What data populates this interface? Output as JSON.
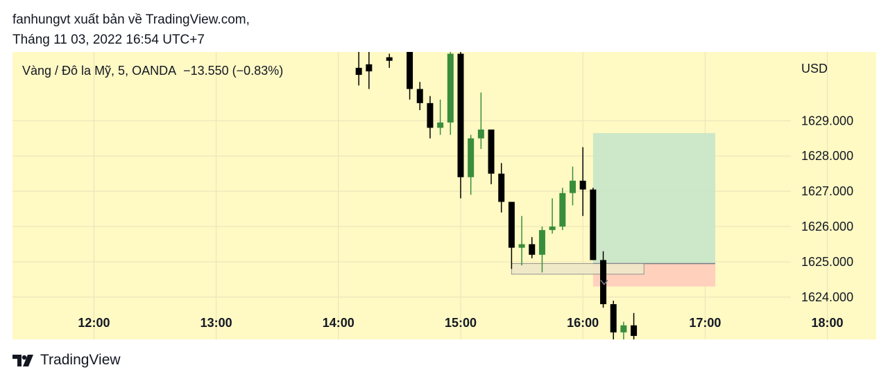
{
  "header": {
    "line1": "fanhungvt xuất bản về TradingView.com,",
    "line2": "Tháng 11 03, 2022 16:54 UTC+7"
  },
  "legend": {
    "symbol": "Vàng / Đô la Mỹ, 5, OANDA",
    "change": "−13.550 (−0.83%)"
  },
  "axis": {
    "currency": "USD"
  },
  "footer": {
    "brand": "TradingView"
  },
  "colors": {
    "background": "#fff9c4",
    "up": "#388e3c",
    "down": "#000000",
    "grid": "#e8e2b8",
    "profit_zone": "#c8e6c9",
    "loss_zone": "#ffccbc"
  },
  "chart_data": {
    "type": "candlestick",
    "symbol": "XAUUSD",
    "interval_minutes": 5,
    "x_ticks": [
      "12:00",
      "13:00",
      "14:00",
      "15:00",
      "16:00",
      "17:00",
      "18:00"
    ],
    "y_ticks": [
      "1624.000",
      "1625.000",
      "1626.000",
      "1627.000",
      "1628.000",
      "1629.000"
    ],
    "xlim": [
      "11:20",
      "18:24"
    ],
    "ylim": [
      1622.8,
      1630.95
    ],
    "candles": [
      {
        "t": "14:10",
        "o": 1630.5,
        "h": 1631.0,
        "l": 1630.0,
        "c": 1630.3
      },
      {
        "t": "14:15",
        "o": 1630.6,
        "h": 1631.0,
        "l": 1629.9,
        "c": 1630.4
      },
      {
        "t": "14:25",
        "o": 1630.8,
        "h": 1630.9,
        "l": 1630.5,
        "c": 1630.7
      },
      {
        "t": "14:35",
        "o": 1631.0,
        "h": 1631.0,
        "l": 1629.6,
        "c": 1629.9
      },
      {
        "t": "14:40",
        "o": 1629.9,
        "h": 1630.1,
        "l": 1629.3,
        "c": 1629.5
      },
      {
        "t": "14:45",
        "o": 1629.5,
        "h": 1629.7,
        "l": 1628.5,
        "c": 1628.8
      },
      {
        "t": "14:50",
        "o": 1628.8,
        "h": 1629.6,
        "l": 1628.6,
        "c": 1628.95
      },
      {
        "t": "14:55",
        "o": 1628.95,
        "h": 1631.0,
        "l": 1628.6,
        "c": 1630.9
      },
      {
        "t": "15:00",
        "o": 1630.9,
        "h": 1631.0,
        "l": 1626.8,
        "c": 1627.4
      },
      {
        "t": "15:05",
        "o": 1627.4,
        "h": 1628.6,
        "l": 1626.9,
        "c": 1628.5
      },
      {
        "t": "15:10",
        "o": 1628.5,
        "h": 1629.8,
        "l": 1628.2,
        "c": 1628.75
      },
      {
        "t": "15:15",
        "o": 1628.75,
        "h": 1628.75,
        "l": 1627.2,
        "c": 1627.5
      },
      {
        "t": "15:20",
        "o": 1627.5,
        "h": 1627.8,
        "l": 1626.4,
        "c": 1626.7
      },
      {
        "t": "15:25",
        "o": 1626.7,
        "h": 1626.7,
        "l": 1624.8,
        "c": 1625.4
      },
      {
        "t": "15:30",
        "o": 1625.4,
        "h": 1626.3,
        "l": 1624.9,
        "c": 1625.5
      },
      {
        "t": "15:35",
        "o": 1625.5,
        "h": 1625.7,
        "l": 1625.1,
        "c": 1625.2
      },
      {
        "t": "15:40",
        "o": 1625.2,
        "h": 1626.0,
        "l": 1624.7,
        "c": 1625.9
      },
      {
        "t": "15:45",
        "o": 1625.9,
        "h": 1626.8,
        "l": 1625.8,
        "c": 1626.0
      },
      {
        "t": "15:50",
        "o": 1626.0,
        "h": 1627.1,
        "l": 1625.9,
        "c": 1626.95
      },
      {
        "t": "15:55",
        "o": 1626.95,
        "h": 1627.7,
        "l": 1626.6,
        "c": 1627.3
      },
      {
        "t": "16:00",
        "o": 1627.3,
        "h": 1628.25,
        "l": 1626.3,
        "c": 1627.05
      },
      {
        "t": "16:05",
        "o": 1627.05,
        "h": 1627.1,
        "l": 1625.05,
        "c": 1625.05
      },
      {
        "t": "16:10",
        "o": 1625.05,
        "h": 1625.3,
        "l": 1623.7,
        "c": 1623.8
      },
      {
        "t": "16:15",
        "o": 1623.8,
        "h": 1623.9,
        "l": 1622.8,
        "c": 1623.0
      },
      {
        "t": "16:20",
        "o": 1623.0,
        "h": 1623.3,
        "l": 1622.8,
        "c": 1623.2
      },
      {
        "t": "16:25",
        "o": 1623.2,
        "h": 1623.55,
        "l": 1622.8,
        "c": 1622.9
      }
    ],
    "drawings": {
      "long_position": {
        "start": "16:05",
        "end": "17:05",
        "entry": 1624.95,
        "target": 1628.65,
        "stop": 1624.3
      },
      "rectangle": {
        "start": "15:25",
        "end": "16:30",
        "top": 1624.95,
        "bottom": 1624.65
      }
    }
  }
}
